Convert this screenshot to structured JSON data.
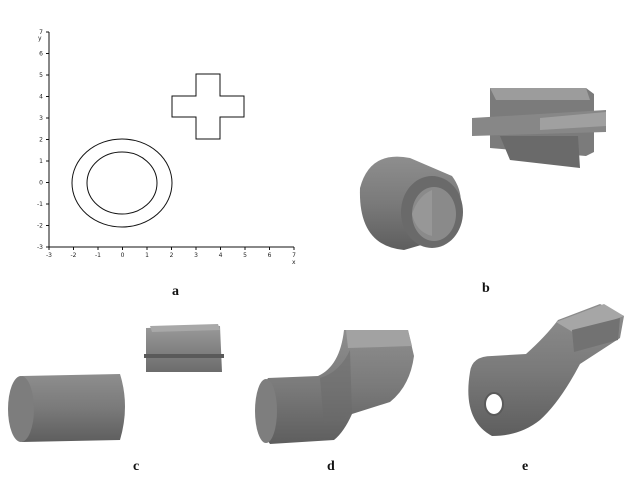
{
  "figure": {
    "panels": [
      {
        "id": "a",
        "label": "a"
      },
      {
        "id": "b",
        "label": "b"
      },
      {
        "id": "c",
        "label": "c"
      },
      {
        "id": "d",
        "label": "d"
      },
      {
        "id": "e",
        "label": "e"
      }
    ],
    "colors": {
      "solid_fill": "#7f7f7f",
      "solid_shadow": "#5c5c5c",
      "solid_light": "#a4a4a4",
      "line": "#111111"
    }
  },
  "plot_a": {
    "x_axis_name": "x",
    "y_axis_name": "y",
    "x_ticks": [
      "-3",
      "-2",
      "-1",
      "0",
      "1",
      "2",
      "3",
      "4",
      "5",
      "6",
      "7"
    ],
    "y_ticks": [
      "7",
      "6",
      "5",
      "4",
      "3",
      "2",
      "1",
      "0",
      "-1",
      "-2",
      "-3"
    ]
  }
}
